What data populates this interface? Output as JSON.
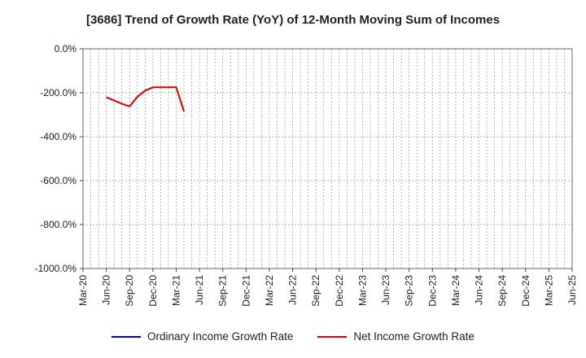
{
  "chart_data": {
    "type": "line",
    "title": "[3686]  Trend of Growth Rate (YoY) of 12-Month Moving Sum of Incomes",
    "ylim": [
      -1000,
      0
    ],
    "yticks": [
      0,
      -200,
      -400,
      -600,
      -800,
      -1000
    ],
    "ytick_labels": [
      "0.0%",
      "-200.0%",
      "-400.0%",
      "-600.0%",
      "-800.0%",
      "-1000.0%"
    ],
    "x_start": "Mar-20",
    "x_end": "Jun-25",
    "xtick_labels": [
      "Mar-20",
      "Jun-20",
      "Sep-20",
      "Dec-20",
      "Mar-21",
      "Jun-21",
      "Sep-21",
      "Dec-21",
      "Mar-22",
      "Jun-22",
      "Sep-22",
      "Dec-22",
      "Mar-23",
      "Jun-23",
      "Sep-23",
      "Dec-23",
      "Mar-24",
      "Jun-24",
      "Sep-24",
      "Dec-24",
      "Mar-25",
      "Jun-25"
    ],
    "grid": true,
    "legend_position": "bottom",
    "series": [
      {
        "name": "Ordinary Income Growth Rate",
        "color": "#0000cc",
        "x": [],
        "values": []
      },
      {
        "name": "Net Income Growth Rate",
        "color": "#dd0000",
        "x": [
          "Jun-20",
          "Jul-20",
          "Aug-20",
          "Sep-20",
          "Oct-20",
          "Nov-20",
          "Dec-20",
          "Jan-21",
          "Feb-21",
          "Mar-21",
          "Apr-21"
        ],
        "values": [
          -220,
          -235,
          -250,
          -262,
          -218,
          -190,
          -175,
          -175,
          -175,
          -175,
          -285
        ]
      }
    ]
  }
}
